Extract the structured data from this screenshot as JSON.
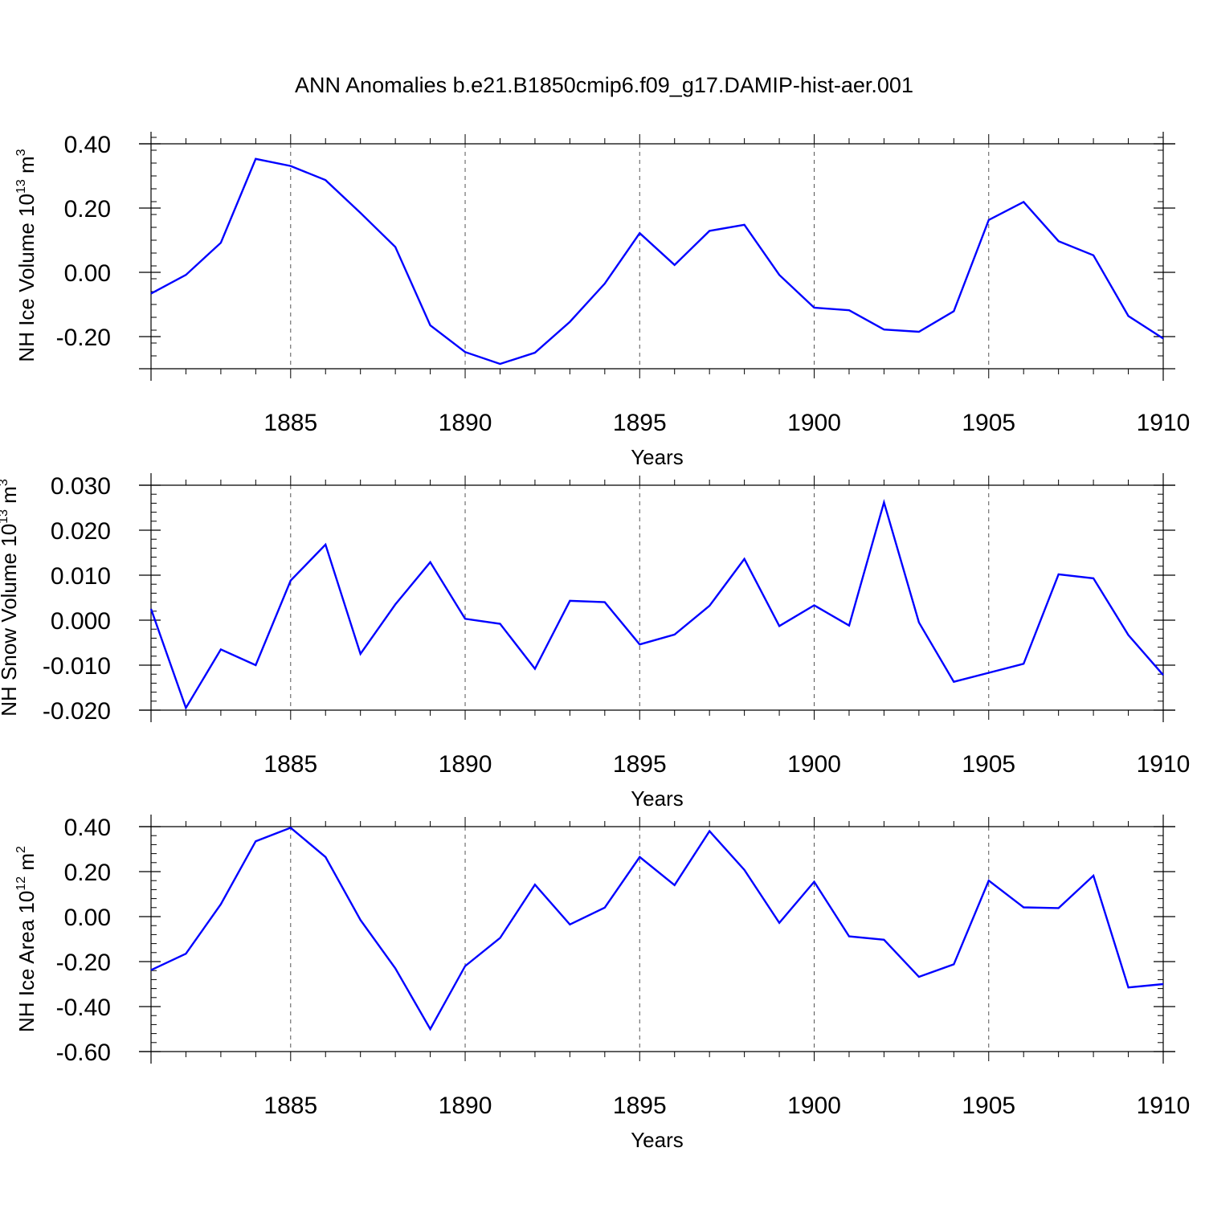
{
  "chart_data": {
    "type": "line",
    "title": "ANN Anomalies b.e21.B1850cmip6.f09_g17.DAMIP-hist-aer.001",
    "x": [
      1881,
      1882,
      1883,
      1884,
      1885,
      1886,
      1887,
      1888,
      1889,
      1890,
      1891,
      1892,
      1893,
      1894,
      1895,
      1896,
      1897,
      1898,
      1899,
      1900,
      1901,
      1902,
      1903,
      1904,
      1905,
      1906,
      1907,
      1908,
      1909,
      1910
    ],
    "xlim": [
      1881,
      1910
    ],
    "xticks": [
      1885,
      1890,
      1895,
      1900,
      1905,
      1910
    ],
    "gridlines": "dashed vertical at major x ticks",
    "line_color": "#0000ff",
    "panels": [
      {
        "name": "ice-volume",
        "xlabel": "Years",
        "ylabel_main": "NH Ice Volume 10",
        "ylabel_exp": "13",
        "ylabel_unit": " m",
        "ylabel_unit_exp": "3",
        "ylim": [
          -0.3,
          0.4
        ],
        "yticks": [
          0.4,
          0.2,
          0.0,
          -0.2
        ],
        "yticklabels": [
          "0.40",
          "0.20",
          "0.00",
          "-0.20"
        ],
        "yminor_step": 0.04,
        "values": [
          -0.066,
          -0.008,
          0.092,
          0.353,
          0.331,
          0.287,
          0.185,
          0.079,
          -0.165,
          -0.248,
          -0.285,
          -0.25,
          -0.154,
          -0.035,
          0.122,
          0.023,
          0.129,
          0.148,
          -0.008,
          -0.11,
          -0.118,
          -0.178,
          -0.185,
          -0.121,
          0.163,
          0.219,
          0.097,
          0.053,
          -0.136,
          -0.206
        ]
      },
      {
        "name": "snow-volume",
        "xlabel": "Years",
        "ylabel_main": "NH Snow Volume 10",
        "ylabel_exp": "13",
        "ylabel_unit": " m",
        "ylabel_unit_exp": "3",
        "ylim": [
          -0.02,
          0.03
        ],
        "yticks": [
          0.03,
          0.02,
          0.01,
          0.0,
          -0.01,
          -0.02
        ],
        "yticklabels": [
          "0.030",
          "0.020",
          "0.010",
          "0.000",
          "-0.010",
          "-0.020"
        ],
        "yminor_step": 0.002,
        "values": [
          0.0025,
          -0.0195,
          -0.0065,
          -0.01,
          0.0088,
          0.0168,
          -0.0075,
          0.0035,
          0.0129,
          0.0003,
          -0.0008,
          -0.0108,
          0.0043,
          0.004,
          -0.0054,
          -0.0032,
          0.0032,
          0.0136,
          -0.0013,
          0.0033,
          -0.0012,
          0.0262,
          -0.0005,
          -0.0137,
          -0.0117,
          -0.0097,
          0.0102,
          0.0093,
          -0.0033,
          -0.0122
        ]
      },
      {
        "name": "ice-area",
        "xlabel": "Years",
        "ylabel_main": "NH Ice Area 10",
        "ylabel_exp": "12",
        "ylabel_unit": " m",
        "ylabel_unit_exp": "2",
        "ylim": [
          -0.6,
          0.4
        ],
        "yticks": [
          0.4,
          0.2,
          0.0,
          -0.2,
          -0.4,
          -0.6
        ],
        "yticklabels": [
          "0.40",
          "0.20",
          "0.00",
          "-0.20",
          "-0.40",
          "-0.60"
        ],
        "yminor_step": 0.04,
        "values": [
          -0.238,
          -0.165,
          0.055,
          0.335,
          0.395,
          0.265,
          -0.015,
          -0.23,
          -0.5,
          -0.22,
          -0.095,
          0.142,
          -0.035,
          0.04,
          0.265,
          0.14,
          0.38,
          0.208,
          -0.028,
          0.155,
          -0.088,
          -0.103,
          -0.268,
          -0.212,
          0.16,
          0.041,
          0.038,
          0.182,
          -0.315,
          -0.3
        ]
      }
    ]
  }
}
